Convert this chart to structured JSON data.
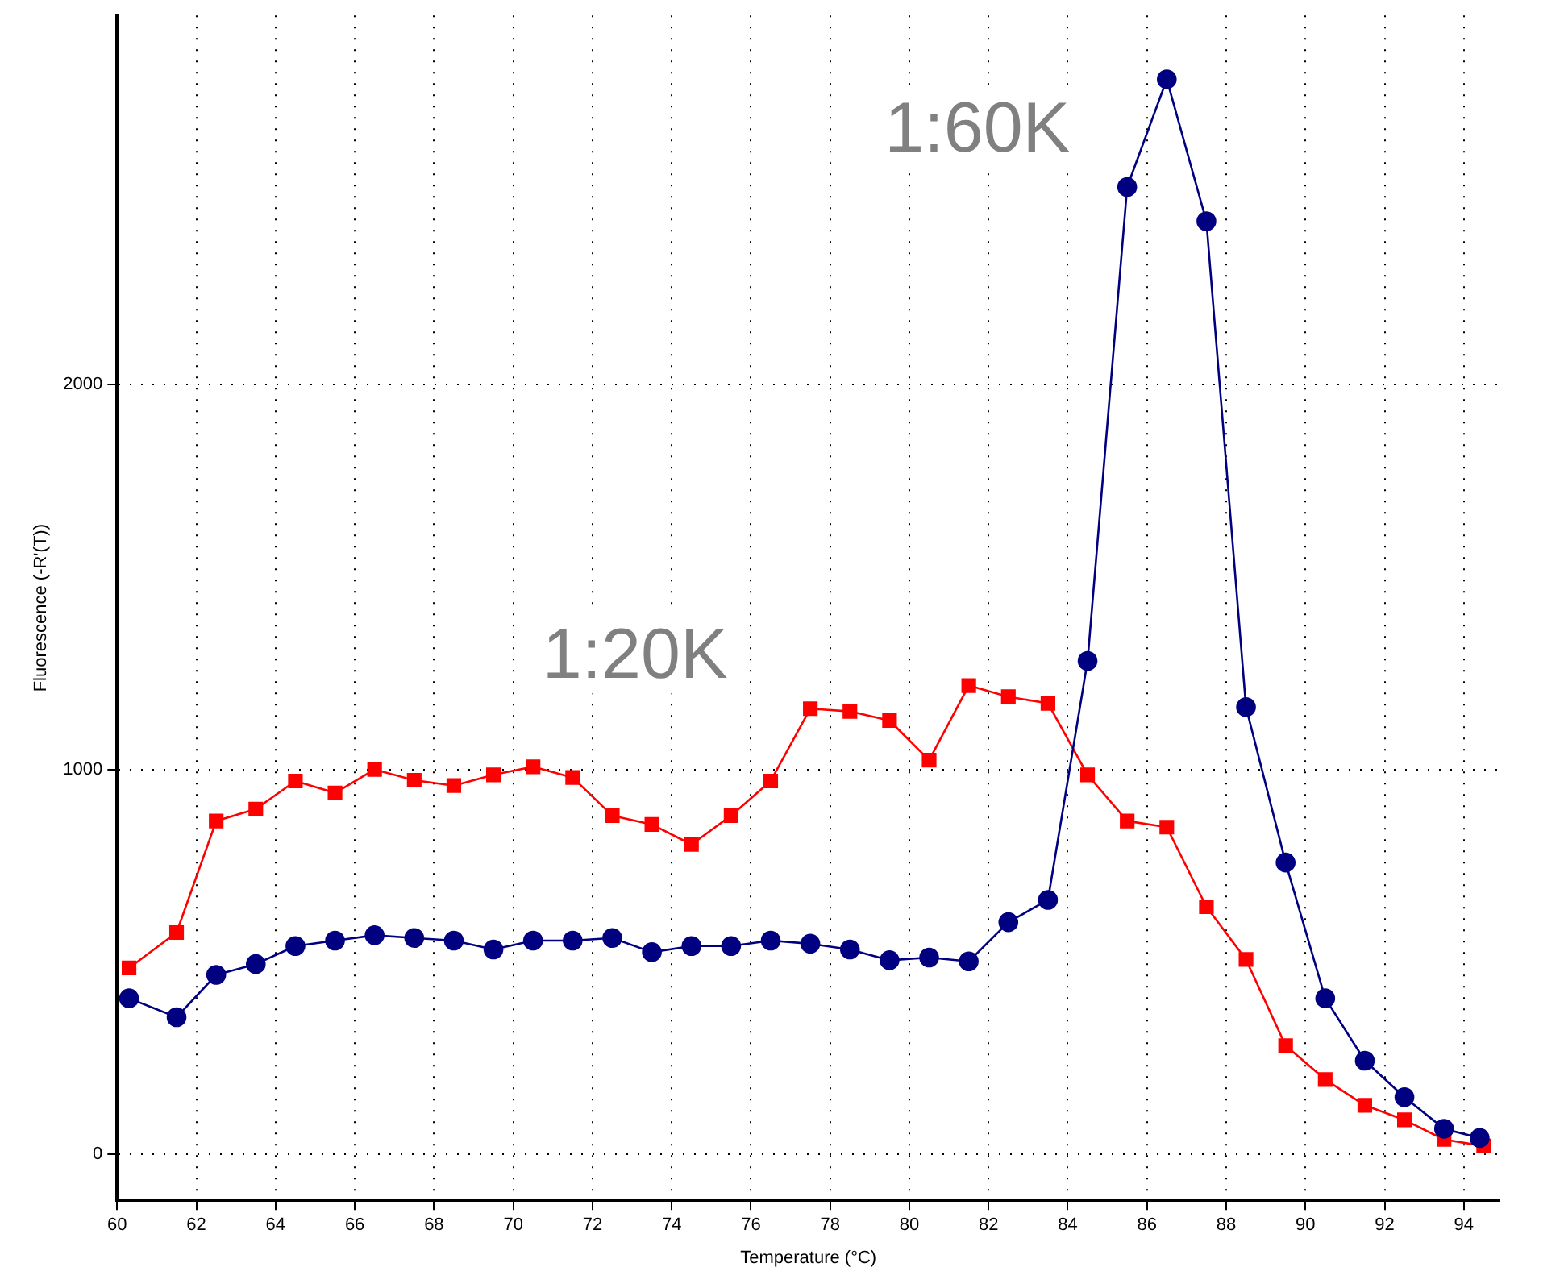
{
  "chart_data": {
    "type": "line",
    "xlabel": "Temperature (°C)",
    "ylabel": "Fluorescence (-R'(T))",
    "xlim": [
      60,
      94.9
    ],
    "xticks": [
      60,
      62,
      64,
      66,
      68,
      70,
      72,
      74,
      76,
      78,
      80,
      82,
      84,
      86,
      88,
      90,
      92,
      94
    ],
    "ylim": [
      -120,
      2960
    ],
    "yticks": [
      0,
      1000,
      2000
    ],
    "grid": true,
    "legend": false,
    "line_style": "solid",
    "series": [
      {
        "name": "1:60K",
        "color": "#000080",
        "marker": "circle",
        "x": [
          60.3,
          61.5,
          62.5,
          63.5,
          64.5,
          65.5,
          66.5,
          67.5,
          68.5,
          69.5,
          70.5,
          71.5,
          72.5,
          73.5,
          74.5,
          75.5,
          76.5,
          77.5,
          78.5,
          79.5,
          80.5,
          81.5,
          82.5,
          83.5,
          84.5,
          85.5,
          86.5,
          87.5,
          88.5,
          89.5,
          90.5,
          91.5,
          92.5,
          93.5,
          94.4
        ],
        "values": [
          405,
          356,
          466,
          494,
          541,
          555,
          569,
          562,
          555,
          532,
          555,
          555,
          562,
          525,
          541,
          541,
          555,
          547,
          532,
          504,
          511,
          501,
          603,
          661,
          1282,
          2514,
          2794,
          2425,
          1162,
          758,
          405,
          243,
          148,
          66,
          42
        ]
      },
      {
        "name": "1:20K",
        "color": "#ff0000",
        "marker": "square",
        "x": [
          60.3,
          61.5,
          62.5,
          63.5,
          64.5,
          65.5,
          66.5,
          67.5,
          68.5,
          69.5,
          70.5,
          71.5,
          72.5,
          73.5,
          74.5,
          75.5,
          76.5,
          77.5,
          78.5,
          79.5,
          80.5,
          81.5,
          82.5,
          83.5,
          84.5,
          85.5,
          86.5,
          87.5,
          88.5,
          89.5,
          90.5,
          91.5,
          92.5,
          93.5,
          94.5
        ],
        "values": [
          484,
          576,
          866,
          897,
          970,
          939,
          1000,
          972,
          958,
          986,
          1007,
          979,
          880,
          857,
          805,
          880,
          970,
          1158,
          1151,
          1127,
          1024,
          1218,
          1189,
          1172,
          986,
          866,
          850,
          643,
          506,
          282,
          194,
          127,
          89,
          38,
          21
        ]
      }
    ]
  }
}
